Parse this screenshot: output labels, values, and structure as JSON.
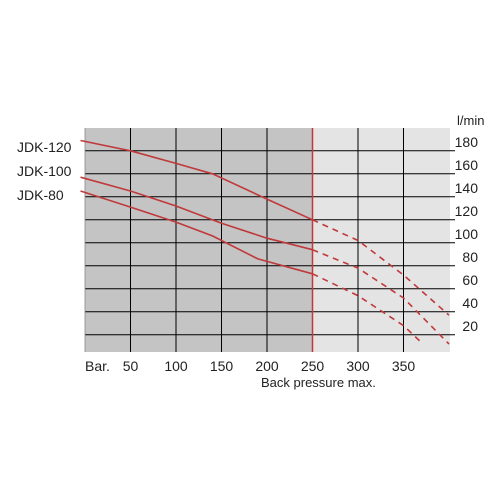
{
  "chart_data": {
    "type": "line",
    "x_ticks": [
      50,
      100,
      150,
      200,
      250,
      300,
      350
    ],
    "x_tick_labels": [
      "50",
      "100",
      "150",
      "200",
      "250",
      "300",
      "350"
    ],
    "x_prefix_label": "Bar.",
    "y_ticks": [
      20,
      40,
      60,
      80,
      100,
      120,
      140,
      160,
      180
    ],
    "y_tick_labels": [
      "20",
      "40",
      "60",
      "80",
      "100",
      "120",
      "140",
      "160",
      "180"
    ],
    "y_unit": "l/min",
    "xlim": [
      0,
      400
    ],
    "ylim": [
      5,
      200
    ],
    "grid": true,
    "max_line_x": 250,
    "max_line_label": "Back pressure max.",
    "series": [
      {
        "name": "JDK-120",
        "solid": [
          [
            -5,
            189
          ],
          [
            50,
            180
          ],
          [
            100,
            169
          ],
          [
            140,
            160
          ],
          [
            200,
            138
          ],
          [
            250,
            120
          ]
        ],
        "dashed": [
          [
            250,
            120
          ],
          [
            300,
            102
          ],
          [
            350,
            72
          ],
          [
            400,
            37
          ]
        ]
      },
      {
        "name": "JDK-100",
        "solid": [
          [
            -5,
            157
          ],
          [
            50,
            145
          ],
          [
            100,
            132
          ],
          [
            150,
            117
          ],
          [
            200,
            104
          ],
          [
            250,
            94
          ]
        ],
        "dashed": [
          [
            250,
            94
          ],
          [
            300,
            78
          ],
          [
            350,
            52
          ],
          [
            400,
            12
          ]
        ]
      },
      {
        "name": "JDK-80",
        "solid": [
          [
            -5,
            145
          ],
          [
            50,
            131
          ],
          [
            100,
            118
          ],
          [
            140,
            106
          ],
          [
            190,
            86
          ],
          [
            250,
            73
          ]
        ],
        "dashed": [
          [
            250,
            73
          ],
          [
            300,
            54
          ],
          [
            350,
            28
          ],
          [
            370,
            13
          ]
        ]
      }
    ],
    "colors": {
      "line": "#c0393b",
      "max_label": "#8b2020",
      "shade_left": "#c4c4c4",
      "shade_right": "#e4e4e4",
      "grid": "#000000"
    }
  }
}
